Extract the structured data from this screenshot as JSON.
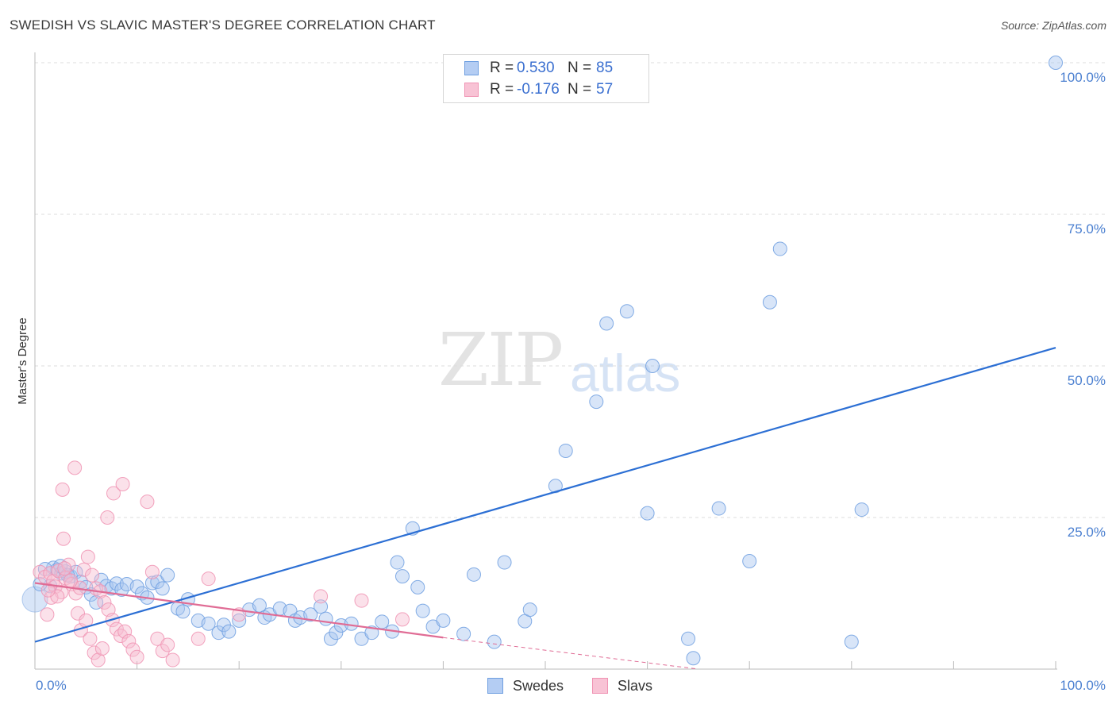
{
  "chart_data": {
    "type": "scatter",
    "title": "SWEDISH VS SLAVIC MASTER'S DEGREE CORRELATION CHART",
    "source": "Source: ZipAtlas.com",
    "ylabel": "Master's Degree",
    "xlim": [
      0,
      100
    ],
    "ylim": [
      0,
      100
    ],
    "y_tick_labels": [
      "100.0%",
      "75.0%",
      "50.0%",
      "25.0%"
    ],
    "y_tick_values": [
      100,
      75,
      50,
      25
    ],
    "x_tick_labels": [
      "0.0%",
      "100.0%"
    ],
    "watermark": [
      "ZIP",
      "atlas"
    ],
    "legend": {
      "rows": [
        {
          "r_label": "R =",
          "r_value": "0.530",
          "n_label": "N =",
          "n_value": "85"
        },
        {
          "r_label": "R =",
          "r_value": "-0.176",
          "n_label": "N =",
          "n_value": "57"
        }
      ]
    },
    "series": [
      {
        "name": "Swedes",
        "color": "#6f9fe0",
        "fill": "#a9c6f0",
        "trend": {
          "x0": 0,
          "y0": 4.5,
          "x1": 100,
          "y1": 53
        },
        "points": [
          [
            1.5,
            13.7
          ],
          [
            1.8,
            16.7
          ],
          [
            2.2,
            16.4
          ],
          [
            2.6,
            15.8
          ],
          [
            3.0,
            16.1
          ],
          [
            3.5,
            15.3
          ],
          [
            4.0,
            16.0
          ],
          [
            4.5,
            14.4
          ],
          [
            5.0,
            13.5
          ],
          [
            5.5,
            12.3
          ],
          [
            6.0,
            11.0
          ],
          [
            6.5,
            14.7
          ],
          [
            7.0,
            13.7
          ],
          [
            7.5,
            13.3
          ],
          [
            8.0,
            14.1
          ],
          [
            8.5,
            13.1
          ],
          [
            9.0,
            14.0
          ],
          [
            10.0,
            13.6
          ],
          [
            10.5,
            12.5
          ],
          [
            11.0,
            11.8
          ],
          [
            11.5,
            14.2
          ],
          [
            12.0,
            14.4
          ],
          [
            12.5,
            13.3
          ],
          [
            13.0,
            15.5
          ],
          [
            14.0,
            10.0
          ],
          [
            14.5,
            9.5
          ],
          [
            15.0,
            11.5
          ],
          [
            16.0,
            8.0
          ],
          [
            17.0,
            7.5
          ],
          [
            18.0,
            6.0
          ],
          [
            18.5,
            7.3
          ],
          [
            19.0,
            6.2
          ],
          [
            20.0,
            8.0
          ],
          [
            21.0,
            9.8
          ],
          [
            22.0,
            10.5
          ],
          [
            22.5,
            8.5
          ],
          [
            23.0,
            9.0
          ],
          [
            24.0,
            10.0
          ],
          [
            25.0,
            9.6
          ],
          [
            25.5,
            8.0
          ],
          [
            26.0,
            8.5
          ],
          [
            27.0,
            9.0
          ],
          [
            28.0,
            10.3
          ],
          [
            28.5,
            8.3
          ],
          [
            29.0,
            5.0
          ],
          [
            29.5,
            6.0
          ],
          [
            30.0,
            7.2
          ],
          [
            31.0,
            7.5
          ],
          [
            32.0,
            5.0
          ],
          [
            33.0,
            6.0
          ],
          [
            34.0,
            7.8
          ],
          [
            35.0,
            6.2
          ],
          [
            35.5,
            17.6
          ],
          [
            36.0,
            15.3
          ],
          [
            37.0,
            23.2
          ],
          [
            37.5,
            13.5
          ],
          [
            38.0,
            9.6
          ],
          [
            39.0,
            7.0
          ],
          [
            40.0,
            8.0
          ],
          [
            42.0,
            5.8
          ],
          [
            43.0,
            15.6
          ],
          [
            45.0,
            4.5
          ],
          [
            46.0,
            17.6
          ],
          [
            48.0,
            7.9
          ],
          [
            48.5,
            9.8
          ],
          [
            51.0,
            30.2
          ],
          [
            52.0,
            36.0
          ],
          [
            55.0,
            44.1
          ],
          [
            56.0,
            57.0
          ],
          [
            58.0,
            59.0
          ],
          [
            60.0,
            25.7
          ],
          [
            60.5,
            50.0
          ],
          [
            64.0,
            5.0
          ],
          [
            64.5,
            1.8
          ],
          [
            67.0,
            26.5
          ],
          [
            70.0,
            17.8
          ],
          [
            72.0,
            60.5
          ],
          [
            73.0,
            69.3
          ],
          [
            80.0,
            4.5
          ],
          [
            81.0,
            26.3
          ],
          [
            0.5,
            14.0
          ],
          [
            1.0,
            16.5
          ],
          [
            2.5,
            17.0
          ],
          [
            3.2,
            15.5
          ],
          [
            100.0,
            100.0
          ]
        ]
      },
      {
        "name": "Slavs",
        "color": "#f093b3",
        "fill": "#f7bcd0",
        "trend": {
          "x0": 0,
          "y0": 14.2,
          "x1": 40,
          "y1": 5.2,
          "dash_to_x": 65,
          "dash_to_y": 0
        },
        "points": [
          [
            0.5,
            16.0
          ],
          [
            1.0,
            15.2
          ],
          [
            1.5,
            15.8
          ],
          [
            1.8,
            14.5
          ],
          [
            2.0,
            13.6
          ],
          [
            2.3,
            16.2
          ],
          [
            2.6,
            12.7
          ],
          [
            3.0,
            15.0
          ],
          [
            3.3,
            17.2
          ],
          [
            3.6,
            14.0
          ],
          [
            4.0,
            12.5
          ],
          [
            4.4,
            13.4
          ],
          [
            4.8,
            16.4
          ],
          [
            5.2,
            18.5
          ],
          [
            5.6,
            15.5
          ],
          [
            6.0,
            13.3
          ],
          [
            6.4,
            12.8
          ],
          [
            6.8,
            11.0
          ],
          [
            7.2,
            9.8
          ],
          [
            7.6,
            8.1
          ],
          [
            8.0,
            6.6
          ],
          [
            8.4,
            5.5
          ],
          [
            8.8,
            6.2
          ],
          [
            9.2,
            4.6
          ],
          [
            9.6,
            3.2
          ],
          [
            10.0,
            2.0
          ],
          [
            2.8,
            21.5
          ],
          [
            2.7,
            29.6
          ],
          [
            3.9,
            33.2
          ],
          [
            7.1,
            25.0
          ],
          [
            7.7,
            29.0
          ],
          [
            8.6,
            30.5
          ],
          [
            11.0,
            27.6
          ],
          [
            11.5,
            16.0
          ],
          [
            12.0,
            5.0
          ],
          [
            12.5,
            3.0
          ],
          [
            13.0,
            4.0
          ],
          [
            13.5,
            1.5
          ],
          [
            4.2,
            9.2
          ],
          [
            4.5,
            6.4
          ],
          [
            5.0,
            8.0
          ],
          [
            5.4,
            5.0
          ],
          [
            5.8,
            2.7
          ],
          [
            6.2,
            1.5
          ],
          [
            6.6,
            3.4
          ],
          [
            1.2,
            9.0
          ],
          [
            1.6,
            11.8
          ],
          [
            2.2,
            12.0
          ],
          [
            16.0,
            5.0
          ],
          [
            17.0,
            14.9
          ],
          [
            20.0,
            9.0
          ],
          [
            28.0,
            12.0
          ],
          [
            32.0,
            11.3
          ],
          [
            36.0,
            8.2
          ],
          [
            3.5,
            14.6
          ],
          [
            1.3,
            13.0
          ],
          [
            2.9,
            16.6
          ]
        ]
      }
    ]
  }
}
